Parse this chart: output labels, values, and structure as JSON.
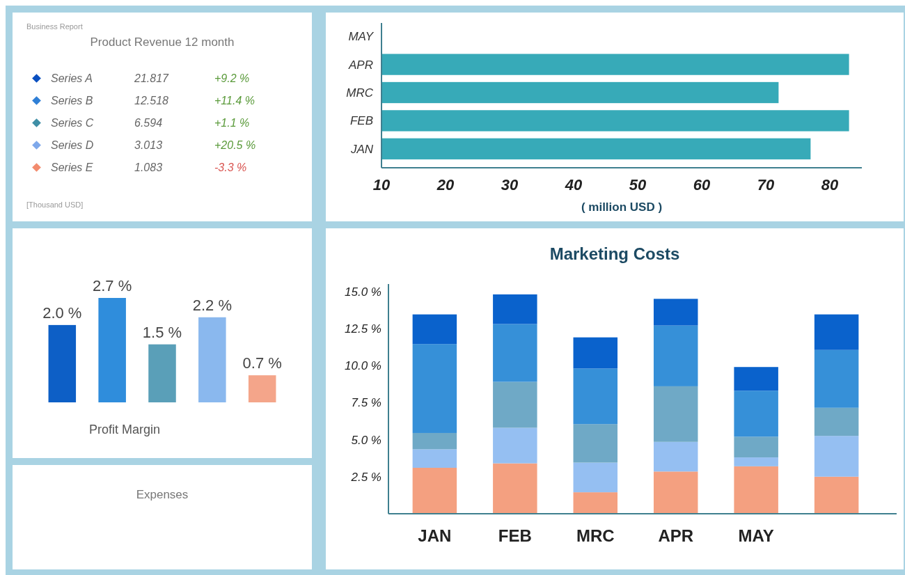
{
  "chart_data": [
    {
      "type": "other",
      "title": "Product Revenue 12 month",
      "subtitle": "Business Report",
      "colors": [
        "#0a4fc0",
        "#2f7fd6",
        "#3f8fa6",
        "#7ea8ea",
        "#f28b6e"
      ],
      "annotations": [
        "Series A",
        "21.817",
        "+9.2 %",
        "Series B",
        "12.518",
        "+11.4 %",
        "Series C",
        "6.594",
        "+1.1 %",
        "Series D",
        "3.013",
        "+20.5 %",
        "Series E",
        "1.083",
        "-3.3 %",
        "[Thousand USD]"
      ]
    },
    {
      "type": "bar",
      "xlabel": "Profit Margin",
      "categories": [
        null,
        null,
        null,
        null,
        null
      ],
      "values": [
        2.0,
        2.7,
        1.5,
        2.2,
        0.7
      ],
      "colors": [
        "#0d5fc6",
        "#2f8ddc",
        "#5a9fb8",
        "#8ab8ee",
        "#f4a58a"
      ],
      "value_labels": [
        "2.0 %",
        "2.7 %",
        "1.5 %",
        "2.2 %",
        "0.7 %"
      ]
    },
    {
      "type": "other",
      "title": "Expenses"
    },
    {
      "type": "bar",
      "orientation": "horizontal",
      "xlabel": "( million USD )",
      "categories": [
        "MAY",
        "APR",
        "MRC",
        "FEB",
        "JAN"
      ],
      "values": [
        null,
        83,
        72,
        83,
        77
      ],
      "color": "#37aab8",
      "xlim": [
        10,
        85
      ],
      "xticks": [
        10,
        20,
        30,
        40,
        50,
        60,
        70,
        80
      ]
    },
    {
      "type": "bar",
      "stacked": true,
      "title": "Marketing Costs",
      "categories": [
        "JAN",
        "FEB",
        "MRC",
        "APR",
        "MAY",
        null
      ],
      "ylim": [
        0,
        15.5
      ],
      "yticks": [
        {
          "value": 2.5,
          "label": "2.5 %"
        },
        {
          "value": 5,
          "label": "5.0 %"
        },
        {
          "value": 7.5,
          "label": "7.5 %"
        },
        {
          "value": 10,
          "label": "10.0 %"
        },
        {
          "value": 12.5,
          "label": "12.5 %"
        },
        {
          "value": 15,
          "label": "15.0 %"
        }
      ],
      "series": [
        {
          "color": "#f4a080",
          "values": [
            3.1,
            3.4,
            1.45,
            2.85,
            3.2,
            2.5
          ]
        },
        {
          "color": "#95bff2",
          "values": [
            1.25,
            2.4,
            2.0,
            2.0,
            0.6,
            2.75
          ]
        },
        {
          "color": "#6fa9c6",
          "values": [
            1.1,
            3.1,
            2.6,
            3.75,
            1.4,
            1.9
          ]
        },
        {
          "color": "#3690d8",
          "values": [
            6.0,
            3.9,
            3.75,
            4.1,
            3.1,
            3.9
          ]
        },
        {
          "color": "#0a62cc",
          "values": [
            2.0,
            2.0,
            2.1,
            1.8,
            1.6,
            2.4
          ]
        }
      ]
    }
  ]
}
